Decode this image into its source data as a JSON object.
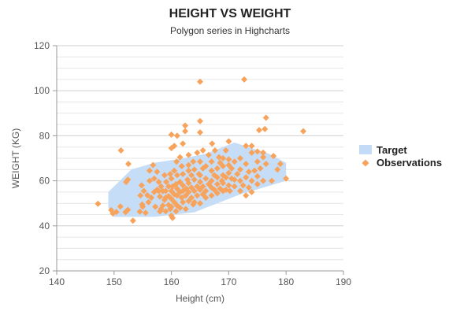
{
  "chart_data": {
    "type": "scatter",
    "title": "HEIGHT VS WEIGHT",
    "subtitle": "Polygon series in Highcharts",
    "xlabel": "Height (cm)",
    "ylabel": "WEIGHT (KG)",
    "xlim": [
      140,
      190
    ],
    "ylim": [
      20,
      120
    ],
    "x_ticks": [
      140,
      150,
      160,
      170,
      180,
      190
    ],
    "y_ticks": [
      20,
      40,
      60,
      80,
      100,
      120
    ],
    "y_minor_step": 5,
    "grid": true,
    "legend_position": "right",
    "colors": {
      "target": "#c3dbf7",
      "observations": "#f7a35c"
    },
    "series": [
      {
        "name": "Target",
        "kind": "polygon",
        "points": [
          [
            149,
            55
          ],
          [
            153,
            65
          ],
          [
            157,
            68
          ],
          [
            162,
            70
          ],
          [
            166,
            72
          ],
          [
            171,
            77
          ],
          [
            177,
            72
          ],
          [
            180,
            68
          ],
          [
            180,
            60
          ],
          [
            176,
            57
          ],
          [
            172,
            54
          ],
          [
            164,
            46
          ],
          [
            157,
            44
          ],
          [
            150,
            44
          ],
          [
            149,
            48
          ]
        ]
      },
      {
        "name": "Observations",
        "kind": "scatter",
        "points": [
          [
            147.2,
            49.8
          ],
          [
            149.5,
            47
          ],
          [
            149.8,
            45.5
          ],
          [
            150.4,
            46.2
          ],
          [
            151.1,
            48.6
          ],
          [
            151.2,
            73.5
          ],
          [
            152.0,
            46.1
          ],
          [
            152.4,
            47.1
          ],
          [
            152.1,
            59.5
          ],
          [
            152.4,
            60.5
          ],
          [
            152.5,
            67.5
          ],
          [
            153.3,
            42.3
          ],
          [
            154.5,
            46.3
          ],
          [
            154.9,
            49.5
          ],
          [
            154.6,
            53.5
          ],
          [
            154.8,
            58.0
          ],
          [
            155.0,
            48.5
          ],
          [
            155.2,
            55.5
          ],
          [
            155.5,
            45.8
          ],
          [
            155.8,
            53.6
          ],
          [
            156.0,
            50.5
          ],
          [
            156.2,
            60.0
          ],
          [
            156.2,
            64.5
          ],
          [
            156.5,
            52.5
          ],
          [
            156.8,
            67.0
          ],
          [
            157.0,
            55.0
          ],
          [
            157.0,
            61.0
          ],
          [
            157.2,
            48.5
          ],
          [
            157.5,
            56.0
          ],
          [
            157.5,
            64.0
          ],
          [
            157.8,
            55.5
          ],
          [
            157.8,
            59.5
          ],
          [
            158.0,
            46.4
          ],
          [
            158.0,
            53.0
          ],
          [
            158.2,
            47.5
          ],
          [
            158.2,
            57.5
          ],
          [
            158.5,
            49.0
          ],
          [
            158.5,
            55.4
          ],
          [
            158.8,
            51.5
          ],
          [
            158.8,
            62.5
          ],
          [
            159.0,
            46.5
          ],
          [
            159.0,
            52.5
          ],
          [
            159.0,
            55.5
          ],
          [
            159.1,
            59.5
          ],
          [
            159.5,
            49.3
          ],
          [
            159.5,
            53.2
          ],
          [
            159.5,
            57.5
          ],
          [
            159.8,
            47.5
          ],
          [
            159.8,
            63.0
          ],
          [
            160.0,
            44.5
          ],
          [
            160.0,
            48.5
          ],
          [
            160.0,
            52.0
          ],
          [
            160.0,
            55.5
          ],
          [
            160.0,
            61.0
          ],
          [
            160.0,
            74.5
          ],
          [
            160.0,
            80.5
          ],
          [
            160.2,
            43.5
          ],
          [
            160.2,
            57.5
          ],
          [
            160.5,
            50.5
          ],
          [
            160.5,
            54.0
          ],
          [
            160.5,
            64.5
          ],
          [
            160.5,
            75.5
          ],
          [
            160.8,
            46.5
          ],
          [
            160.8,
            58.5
          ],
          [
            160.9,
            68.5
          ],
          [
            161.0,
            49.0
          ],
          [
            161.0,
            53.5
          ],
          [
            161.0,
            56.5
          ],
          [
            161.0,
            62.5
          ],
          [
            161.0,
            80.0
          ],
          [
            161.5,
            48.0
          ],
          [
            161.5,
            55.0
          ],
          [
            161.5,
            59.5
          ],
          [
            161.5,
            70.5
          ],
          [
            161.8,
            52.5
          ],
          [
            161.8,
            66.5
          ],
          [
            162.0,
            50.5
          ],
          [
            162.0,
            55.5
          ],
          [
            162.0,
            58.0
          ],
          [
            162.0,
            63.0
          ],
          [
            162.0,
            76.5
          ],
          [
            162.4,
            82.0
          ],
          [
            162.4,
            84.5
          ],
          [
            162.5,
            47.5
          ],
          [
            162.5,
            53.5
          ],
          [
            162.6,
            56.5
          ],
          [
            162.8,
            60.5
          ],
          [
            163.0,
            51.0
          ],
          [
            163.0,
            55.0
          ],
          [
            163.0,
            59.0
          ],
          [
            163.0,
            64.5
          ],
          [
            163.0,
            67.0
          ],
          [
            163.0,
            71.5
          ],
          [
            163.5,
            52.5
          ],
          [
            163.5,
            57.0
          ],
          [
            163.5,
            62.5
          ],
          [
            163.8,
            49.5
          ],
          [
            163.8,
            68.5
          ],
          [
            164.0,
            50.5
          ],
          [
            164.0,
            55.5
          ],
          [
            164.0,
            60.5
          ],
          [
            164.0,
            65.0
          ],
          [
            164.5,
            53.5
          ],
          [
            164.5,
            57.5
          ],
          [
            164.5,
            72.5
          ],
          [
            164.8,
            63.0
          ],
          [
            165.0,
            50.0
          ],
          [
            165.0,
            56.0
          ],
          [
            165.0,
            59.5
          ],
          [
            165.0,
            62.5
          ],
          [
            165.0,
            68.5
          ],
          [
            165.0,
            81.5
          ],
          [
            165.0,
            86.5
          ],
          [
            165.0,
            104.0
          ],
          [
            165.5,
            54.0
          ],
          [
            165.5,
            57.5
          ],
          [
            165.5,
            65.5
          ],
          [
            165.5,
            73.5
          ],
          [
            166.0,
            52.5
          ],
          [
            166.0,
            55.5
          ],
          [
            166.0,
            61.0
          ],
          [
            166.0,
            66.5
          ],
          [
            166.5,
            58.5
          ],
          [
            166.5,
            71.5
          ],
          [
            167.0,
            53.5
          ],
          [
            167.0,
            57.0
          ],
          [
            167.0,
            60.0
          ],
          [
            167.0,
            64.5
          ],
          [
            167.0,
            68.5
          ],
          [
            167.1,
            76.5
          ],
          [
            167.5,
            56.0
          ],
          [
            167.5,
            62.5
          ],
          [
            167.6,
            73.5
          ],
          [
            168.0,
            54.5
          ],
          [
            168.0,
            58.5
          ],
          [
            168.0,
            61.5
          ],
          [
            168.0,
            65.5
          ],
          [
            168.3,
            70.5
          ],
          [
            168.5,
            56.5
          ],
          [
            168.5,
            68.0
          ],
          [
            168.8,
            60.0
          ],
          [
            169.0,
            55.5
          ],
          [
            169.0,
            59.0
          ],
          [
            169.0,
            62.5
          ],
          [
            169.0,
            66.5
          ],
          [
            169.0,
            70.0
          ],
          [
            169.5,
            56.0
          ],
          [
            169.5,
            61.5
          ],
          [
            169.5,
            73.5
          ],
          [
            170.0,
            58.0
          ],
          [
            170.0,
            63.5
          ],
          [
            170.0,
            67.0
          ],
          [
            170.0,
            69.5
          ],
          [
            170.0,
            77.5
          ],
          [
            170.2,
            55.5
          ],
          [
            170.5,
            61.0
          ],
          [
            170.5,
            65.5
          ],
          [
            171.0,
            57.5
          ],
          [
            171.0,
            60.5
          ],
          [
            171.0,
            68.5
          ],
          [
            171.5,
            63.0
          ],
          [
            172.0,
            55.5
          ],
          [
            172.0,
            60.0
          ],
          [
            172.0,
            65.0
          ],
          [
            172.0,
            70.0
          ],
          [
            172.5,
            58.0
          ],
          [
            172.7,
            105.0
          ],
          [
            173.0,
            53.5
          ],
          [
            173.0,
            61.5
          ],
          [
            173.0,
            67.5
          ],
          [
            173.0,
            75.5
          ],
          [
            173.5,
            57.0
          ],
          [
            173.5,
            64.0
          ],
          [
            174.0,
            55.0
          ],
          [
            174.0,
            60.0
          ],
          [
            174.0,
            72.5
          ],
          [
            174.0,
            75.5
          ],
          [
            174.5,
            64.5
          ],
          [
            175.0,
            58.5
          ],
          [
            175.0,
            62.0
          ],
          [
            175.0,
            68.5
          ],
          [
            175.0,
            73.0
          ],
          [
            175.3,
            82.5
          ],
          [
            175.5,
            65.5
          ],
          [
            176.0,
            60.0
          ],
          [
            176.0,
            70.5
          ],
          [
            176.0,
            72.5
          ],
          [
            176.3,
            83.0
          ],
          [
            176.5,
            67.5
          ],
          [
            176.5,
            88.0
          ],
          [
            177.5,
            60.0
          ],
          [
            177.8,
            71.0
          ],
          [
            178.5,
            65.0
          ],
          [
            179.0,
            67.5
          ],
          [
            180.0,
            61.0
          ],
          [
            183.0,
            82.0
          ]
        ]
      }
    ]
  }
}
